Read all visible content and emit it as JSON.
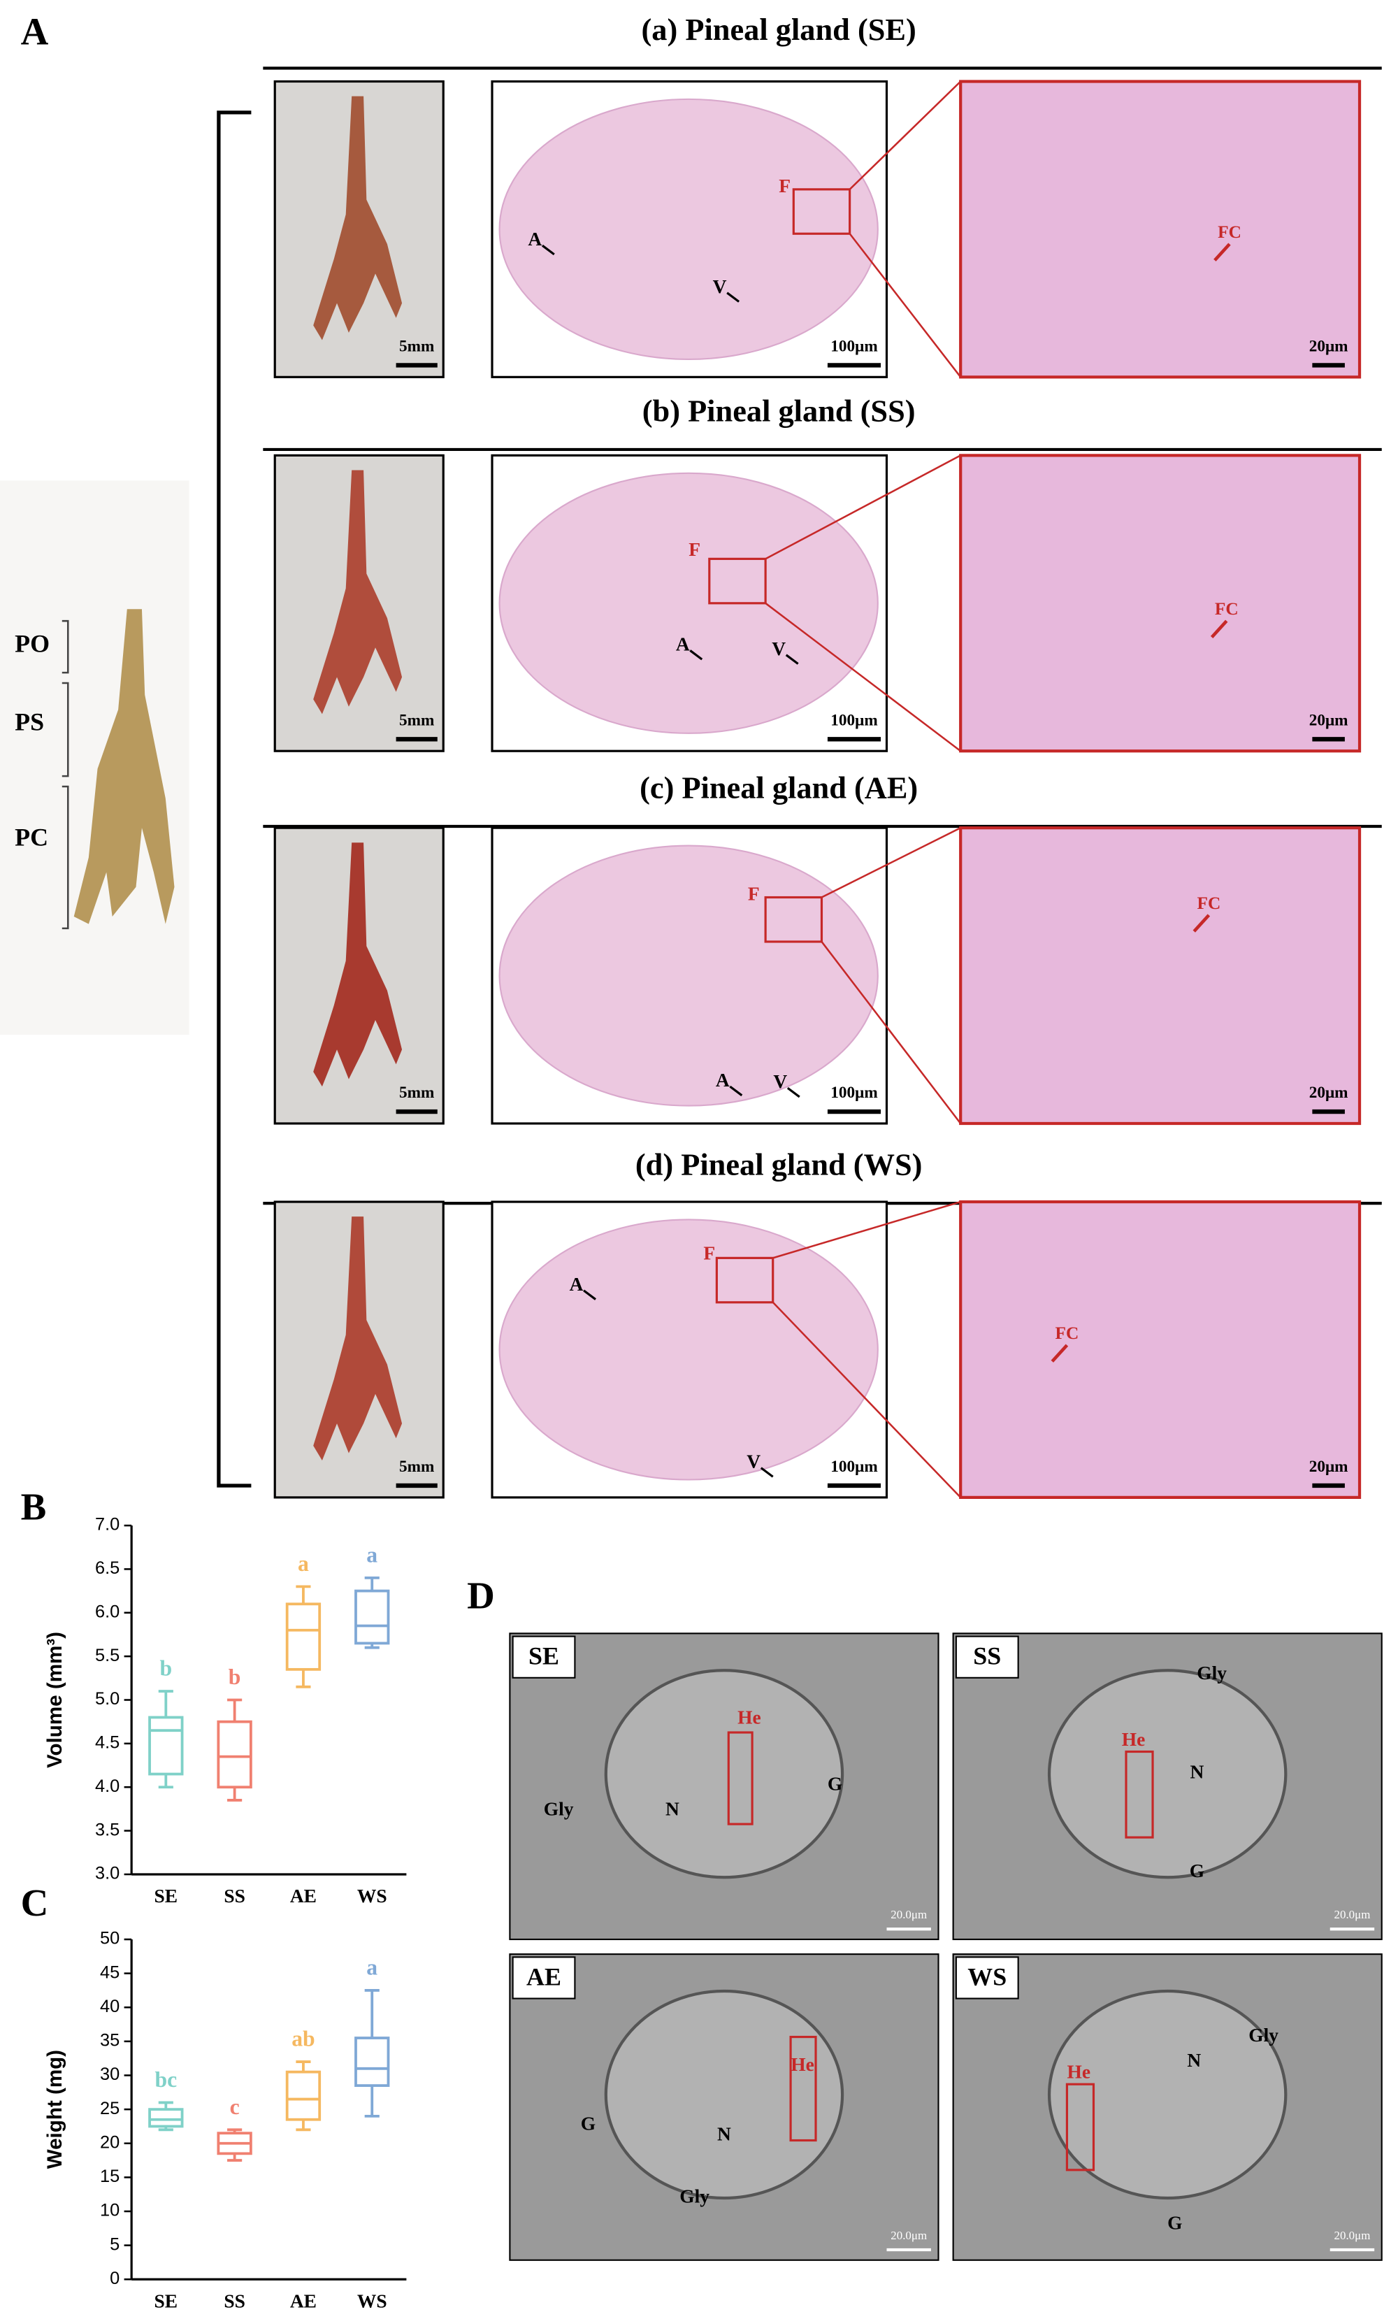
{
  "figure": {
    "panel_labels": [
      "A",
      "B",
      "C",
      "D"
    ],
    "left_photo_labels": [
      "PO",
      "PS",
      "PC"
    ],
    "rows": [
      {
        "title": "(a) Pineal gland (SE)",
        "scale_photo": "5mm",
        "scale_histo": "100μm",
        "scale_zoom": "20μm",
        "marks": [
          "F",
          "A",
          "V"
        ],
        "zoom_mark": "FC"
      },
      {
        "title": "(b) Pineal gland (SS)",
        "scale_photo": "5mm",
        "scale_histo": "100μm",
        "scale_zoom": "20μm",
        "marks": [
          "F",
          "A",
          "V"
        ],
        "zoom_mark": "FC"
      },
      {
        "title": "(c) Pineal gland (AE)",
        "scale_photo": "5mm",
        "scale_histo": "100μm",
        "scale_zoom": "20μm",
        "marks": [
          "F",
          "A",
          "V"
        ],
        "zoom_mark": "FC"
      },
      {
        "title": "(d) Pineal gland (WS)",
        "scale_photo": "5mm",
        "scale_histo": "100μm",
        "scale_zoom": "20μm",
        "marks": [
          "F",
          "A",
          "V"
        ],
        "zoom_mark": "FC"
      }
    ],
    "tem": [
      {
        "label": "SE",
        "marks": [
          "He",
          "N",
          "G",
          "Gly"
        ],
        "scale": "20.0μm"
      },
      {
        "label": "SS",
        "marks": [
          "Gly",
          "He",
          "N",
          "G"
        ],
        "scale": "20.0μm"
      },
      {
        "label": "AE",
        "marks": [
          "He",
          "G",
          "N",
          "Gly"
        ],
        "scale": "20.0μm"
      },
      {
        "label": "WS",
        "marks": [
          "Gly",
          "He",
          "N",
          "G"
        ],
        "scale": "20.0μm"
      }
    ]
  },
  "chart_data": [
    {
      "type": "box",
      "ylabel": "Volume (mm³)",
      "categories": [
        "SE",
        "SS",
        "AE",
        "WS"
      ],
      "ylim": [
        3.0,
        7.0
      ],
      "yticks": [
        {
          "value": 3,
          "label": "3.0"
        },
        3.5,
        {
          "value": 4,
          "label": "4.0"
        },
        4.5,
        {
          "value": 5,
          "label": "5.0"
        },
        5.5,
        {
          "value": 6,
          "label": "6.0"
        },
        6.5,
        {
          "value": 7,
          "label": "7.0"
        }
      ],
      "series": [
        {
          "name": "SE",
          "color": "#7fd1c8",
          "min": 4.0,
          "q1": 4.15,
          "median": 4.65,
          "q3": 4.8,
          "max": 5.1,
          "letter": "b"
        },
        {
          "name": "SS",
          "color": "#f08070",
          "min": 3.85,
          "q1": 4.0,
          "median": 4.35,
          "q3": 4.75,
          "max": 5.0,
          "letter": "b"
        },
        {
          "name": "AE",
          "color": "#f5b860",
          "min": 5.15,
          "q1": 5.35,
          "median": 5.8,
          "q3": 6.1,
          "max": 6.3,
          "letter": "a"
        },
        {
          "name": "WS",
          "color": "#7fa8d6",
          "min": 5.6,
          "q1": 5.65,
          "median": 5.85,
          "q3": 6.25,
          "max": 6.4,
          "letter": "a"
        }
      ]
    },
    {
      "type": "box",
      "ylabel": "Weight (mg)",
      "categories": [
        "SE",
        "SS",
        "AE",
        "WS"
      ],
      "ylim": [
        0,
        50
      ],
      "yticks": [
        0,
        5,
        10,
        15,
        20,
        25,
        30,
        35,
        40,
        45,
        50
      ],
      "series": [
        {
          "name": "SE",
          "color": "#7fd1c8",
          "min": 22,
          "q1": 22.5,
          "median": 23.5,
          "q3": 25,
          "max": 26,
          "letter": "bc"
        },
        {
          "name": "SS",
          "color": "#f08070",
          "min": 17.5,
          "q1": 18.5,
          "median": 20,
          "q3": 21.5,
          "max": 22,
          "letter": "c"
        },
        {
          "name": "AE",
          "color": "#f5b860",
          "min": 22,
          "q1": 23.5,
          "median": 26.5,
          "q3": 30.5,
          "max": 32,
          "letter": "ab"
        },
        {
          "name": "WS",
          "color": "#7fa8d6",
          "min": 24,
          "q1": 28.5,
          "median": 31,
          "q3": 35.5,
          "max": 42.5,
          "letter": "a"
        }
      ]
    }
  ]
}
